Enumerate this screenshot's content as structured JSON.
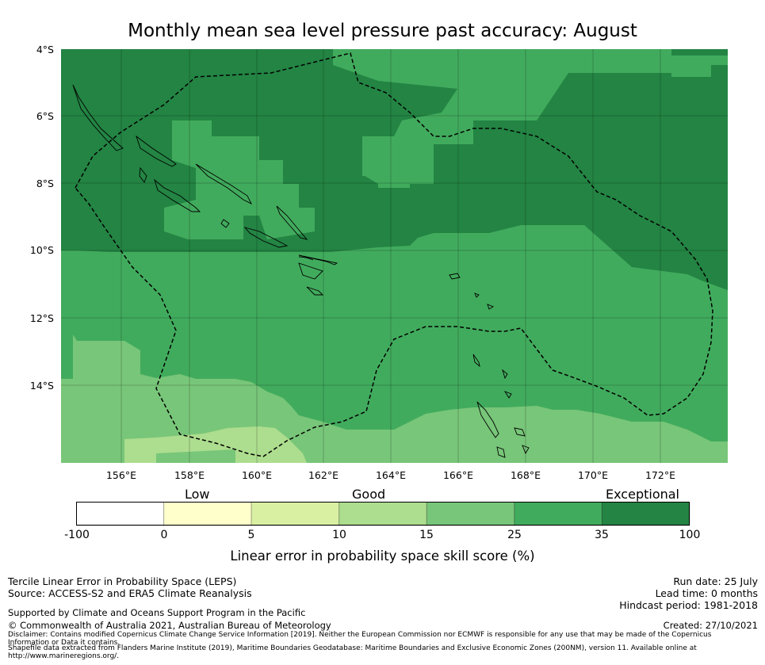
{
  "title": "Monthly mean sea level pressure past accuracy: August",
  "map": {
    "lat_labels": [
      "4°S",
      "6°S",
      "8°S",
      "10°S",
      "12°S",
      "14°S"
    ],
    "lon_labels": [
      "156°E",
      "158°E",
      "160°E",
      "162°E",
      "164°E",
      "166°E",
      "168°E",
      "170°E",
      "172°E"
    ],
    "extent": {
      "lon": [
        154.2,
        174.0
      ],
      "lat": [
        -16.3,
        -4.0
      ]
    },
    "colors": {
      "exceptional": "#238443",
      "band_25_35": "#41ab5d",
      "band_15_25": "#78c679",
      "band_10_15": "#addd8e",
      "eez_line": "#000000"
    }
  },
  "colorbar": {
    "band_labels": [
      "Low",
      "Good",
      "Exceptional"
    ],
    "ticks": [
      "-100",
      "0",
      "5",
      "10",
      "15",
      "25",
      "35",
      "100"
    ],
    "colors": [
      "#ffffff",
      "#ffffcc",
      "#d9f0a3",
      "#addd8e",
      "#78c679",
      "#41ab5d",
      "#238443"
    ],
    "title": "Linear error in probability space skill score (%)"
  },
  "footer": {
    "method": "Tercile Linear Error in Probability Space (LEPS)",
    "source": "Source: ACCESS-S2 and ERA5 Climate Reanalysis",
    "run_date": "Run date: 25 July",
    "lead_time": "Lead time: 0 months",
    "hindcast": "Hindcast period: 1981-2018",
    "supported": "Supported by Climate and Oceans Support Program in the Pacific",
    "copyright": "© Commonwealth of Australia 2021, Australian Bureau of Meteorology",
    "created": "Created: 27/10/2021",
    "disclaimer_1": "Disclaimer: Contains modified Copernicus Climate Change Service Information [2019]. Neither the European Commission nor ECMWF is responsible for any use that may be made of the Copernicus",
    "disclaimer_2": "Information or Data it contains.",
    "shapefile_1": "Shapefile data extracted from Flanders Marine Institute (2019), Maritime Boundaries Geodatabase: Maritime Boundaries and Exclusive Economic Zones (200NM), version 11. Available online at",
    "shapefile_2": "http://www.marineregions.org/."
  }
}
